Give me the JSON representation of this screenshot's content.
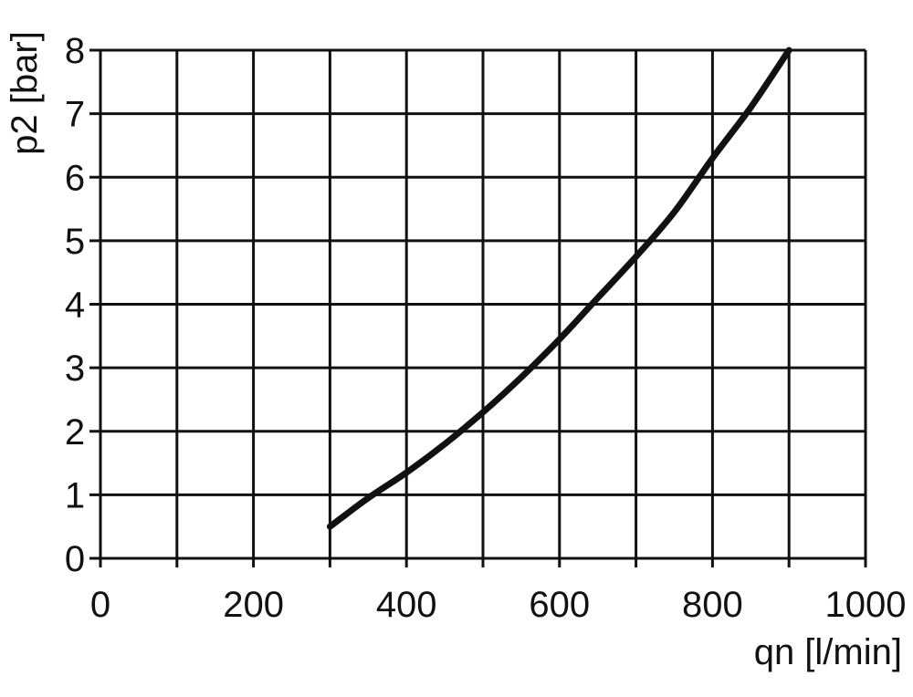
{
  "chart_data": {
    "type": "line",
    "xlabel": "qn [l/min]",
    "ylabel": "p2 [bar]",
    "xlim": [
      0,
      1000
    ],
    "ylim": [
      0,
      8
    ],
    "x_ticks": [
      "0",
      "200",
      "400",
      "600",
      "800",
      "1000"
    ],
    "y_ticks": [
      "0",
      "1",
      "2",
      "3",
      "4",
      "5",
      "6",
      "7",
      "8"
    ],
    "grid": true,
    "grid_x_step": 100,
    "grid_y_step": 1,
    "series": [
      {
        "x": [
          300,
          350,
          400,
          450,
          500,
          550,
          600,
          650,
          700,
          750,
          800,
          850,
          900
        ],
        "y": [
          0.5,
          0.95,
          1.35,
          1.8,
          2.3,
          2.85,
          3.45,
          4.1,
          4.75,
          5.45,
          6.3,
          7.1,
          8.0
        ]
      }
    ],
    "colors": {
      "line": "#111111",
      "grid": "#111111"
    }
  }
}
